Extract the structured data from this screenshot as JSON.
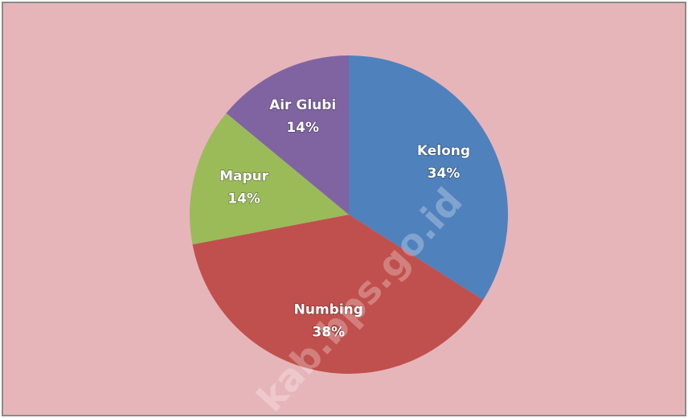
{
  "chart_data": {
    "type": "pie",
    "categories": [
      "Kelong",
      "Numbing",
      "Mapur",
      "Air Glubi"
    ],
    "values": [
      34,
      38,
      14,
      14
    ],
    "value_labels": [
      "34%",
      "38%",
      "14%",
      "14%"
    ],
    "colors": [
      "#4f81bd",
      "#c0504d",
      "#9bbb59",
      "#8064a2"
    ],
    "start_angle": 0,
    "direction": "clockwise",
    "watermark": "kab.bps.go.id"
  }
}
